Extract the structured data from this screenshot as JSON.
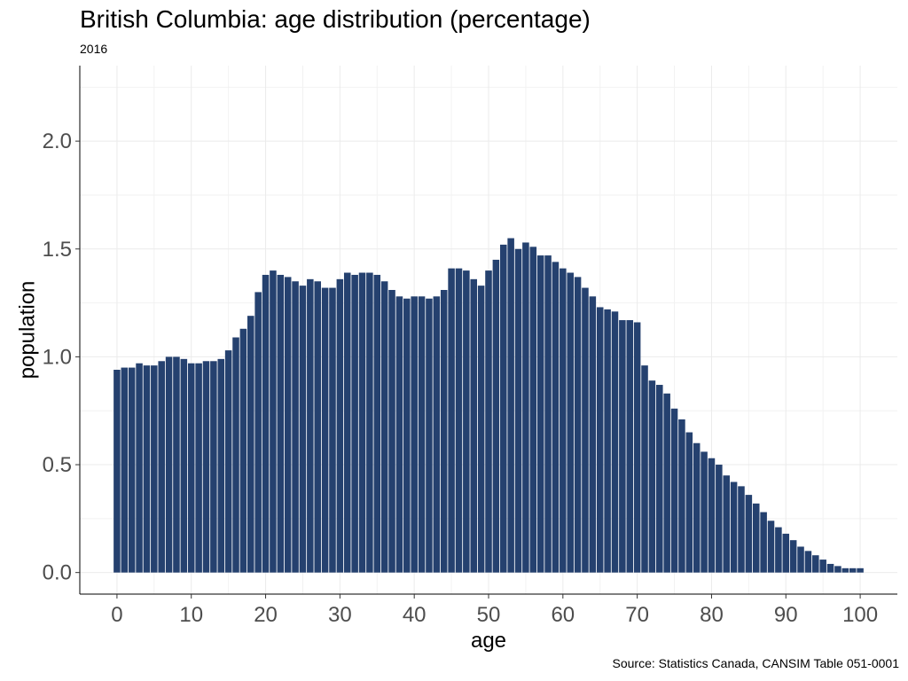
{
  "chart_data": {
    "type": "bar",
    "title": "British Columbia: age distribution (percentage)",
    "subtitle": "2016",
    "caption": "Source: Statistics Canada, CANSIM Table 051-0001",
    "xlabel": "age",
    "ylabel": "population",
    "xlim": [
      -5,
      105
    ],
    "ylim": [
      -0.1,
      2.35
    ],
    "xticks": [
      0,
      10,
      20,
      30,
      40,
      50,
      60,
      70,
      80,
      90,
      100
    ],
    "yticks": [
      0.0,
      0.5,
      1.0,
      1.5,
      2.0
    ],
    "ytick_labels": [
      "0.0",
      "0.5",
      "1.0",
      "1.5",
      "2.0"
    ],
    "grid": true,
    "bar_color": "#25416F",
    "categories": [
      0,
      1,
      2,
      3,
      4,
      5,
      6,
      7,
      8,
      9,
      10,
      11,
      12,
      13,
      14,
      15,
      16,
      17,
      18,
      19,
      20,
      21,
      22,
      23,
      24,
      25,
      26,
      27,
      28,
      29,
      30,
      31,
      32,
      33,
      34,
      35,
      36,
      37,
      38,
      39,
      40,
      41,
      42,
      43,
      44,
      45,
      46,
      47,
      48,
      49,
      50,
      51,
      52,
      53,
      54,
      55,
      56,
      57,
      58,
      59,
      60,
      61,
      62,
      63,
      64,
      65,
      66,
      67,
      68,
      69,
      70,
      71,
      72,
      73,
      74,
      75,
      76,
      77,
      78,
      79,
      80,
      81,
      82,
      83,
      84,
      85,
      86,
      87,
      88,
      89,
      90,
      91,
      92,
      93,
      94,
      95,
      96,
      97,
      98,
      99,
      100
    ],
    "values": [
      0.94,
      0.95,
      0.95,
      0.97,
      0.96,
      0.96,
      0.98,
      1.0,
      1.0,
      0.99,
      0.97,
      0.97,
      0.98,
      0.98,
      0.99,
      1.03,
      1.09,
      1.13,
      1.19,
      1.3,
      1.38,
      1.4,
      1.38,
      1.37,
      1.35,
      1.33,
      1.36,
      1.35,
      1.32,
      1.32,
      1.36,
      1.39,
      1.38,
      1.39,
      1.39,
      1.38,
      1.35,
      1.31,
      1.28,
      1.27,
      1.28,
      1.28,
      1.27,
      1.28,
      1.31,
      1.41,
      1.41,
      1.4,
      1.36,
      1.33,
      1.4,
      1.45,
      1.52,
      1.55,
      1.5,
      1.53,
      1.51,
      1.47,
      1.47,
      1.44,
      1.41,
      1.39,
      1.37,
      1.32,
      1.28,
      1.23,
      1.22,
      1.21,
      1.17,
      1.17,
      1.16,
      0.96,
      0.89,
      0.87,
      0.83,
      0.76,
      0.71,
      0.65,
      0.6,
      0.56,
      0.53,
      0.5,
      0.45,
      0.42,
      0.4,
      0.36,
      0.32,
      0.28,
      0.24,
      0.21,
      0.18,
      0.15,
      0.12,
      0.1,
      0.08,
      0.06,
      0.04,
      0.03,
      0.02,
      0.02,
      0.02
    ]
  }
}
